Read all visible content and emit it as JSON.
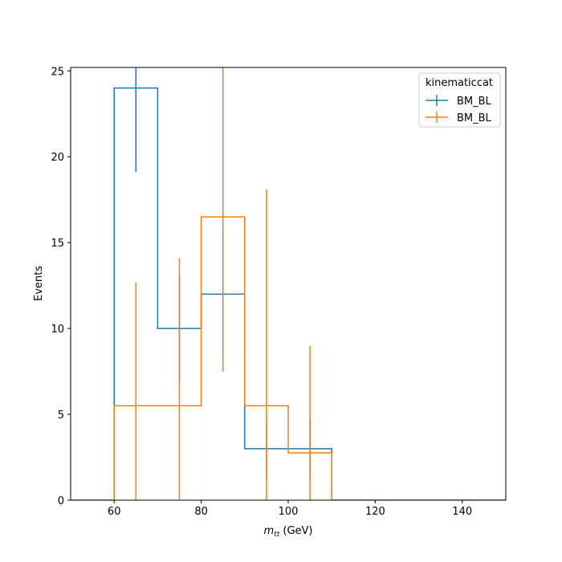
{
  "chart_data": {
    "type": "histogram-step",
    "xlabel_symbol": "m",
    "xlabel_sub": "tt",
    "xlabel_unit": " (GeV)",
    "ylabel": "Events",
    "xlim": [
      50,
      150
    ],
    "ylim": [
      0,
      25.2
    ],
    "xticks": [
      60,
      80,
      100,
      120,
      140
    ],
    "yticks": [
      0,
      5,
      10,
      15,
      20,
      25
    ],
    "grid": false,
    "legend": {
      "placement": "top-right",
      "title": "kinematiccat"
    },
    "bin_edges": [
      50,
      60,
      70,
      80,
      90,
      100,
      110,
      120,
      130,
      140,
      150
    ],
    "series": [
      {
        "name": "BM_BL",
        "color": "#1f77b4",
        "values": [
          0,
          24,
          10,
          12,
          3,
          3,
          0,
          0,
          0,
          0
        ],
        "errors": [
          0,
          4.9,
          3.16,
          3.46,
          1.73,
          1.73,
          0,
          0,
          0,
          0
        ]
      },
      {
        "name": "BM_BL",
        "color": "#ff7f0e",
        "values": [
          0,
          5.5,
          5.5,
          16.5,
          5.5,
          2.75,
          0,
          0,
          0,
          0
        ],
        "errors": [
          0,
          7.2,
          8.6,
          9.0,
          12.6,
          6.25,
          0,
          0,
          0,
          0
        ]
      }
    ]
  }
}
